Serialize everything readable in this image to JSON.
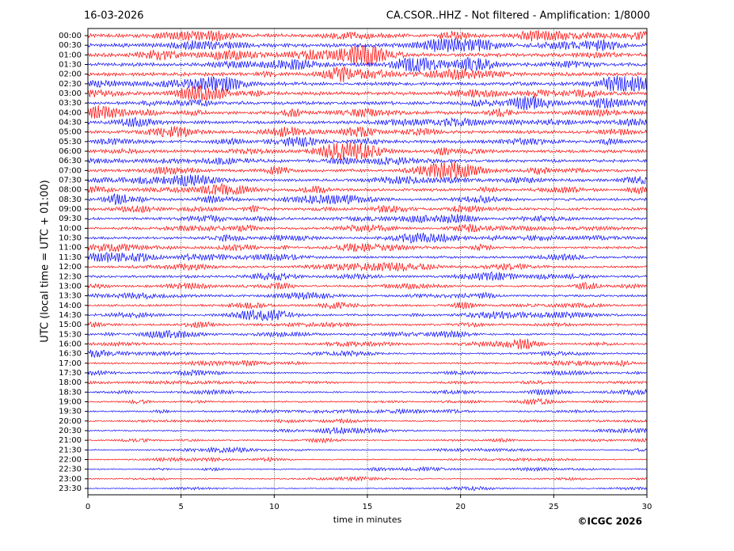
{
  "chart_data": {
    "type": "helicorder",
    "date": "16-03-2026",
    "title": "CA.CSOR..HHZ - Not filtered - Amplification: 1/8000",
    "ylabel": "UTC (local time = UTC + 01:00)",
    "xlabel": "time in minutes",
    "copyright": "©ICGC 2026",
    "categories": [
      "00:00",
      "00:30",
      "01:00",
      "01:30",
      "02:00",
      "02:30",
      "03:00",
      "03:30",
      "04:00",
      "04:30",
      "05:00",
      "05:30",
      "06:00",
      "06:30",
      "07:00",
      "07:30",
      "08:00",
      "08:30",
      "09:00",
      "09:30",
      "10:00",
      "10:30",
      "11:00",
      "11:30",
      "12:00",
      "12:30",
      "13:00",
      "13:30",
      "14:00",
      "14:30",
      "15:00",
      "15:30",
      "16:00",
      "16:30",
      "17:00",
      "17:30",
      "18:00",
      "18:30",
      "19:00",
      "19:30",
      "20:00",
      "20:30",
      "21:00",
      "21:30",
      "22:00",
      "22:30",
      "23:00",
      "23:30"
    ],
    "colors": [
      "#ff0000",
      "#0000ff"
    ],
    "xlim": [
      0,
      30
    ],
    "xticks": [
      0,
      5,
      10,
      15,
      20,
      25,
      30
    ],
    "grid": true
  }
}
